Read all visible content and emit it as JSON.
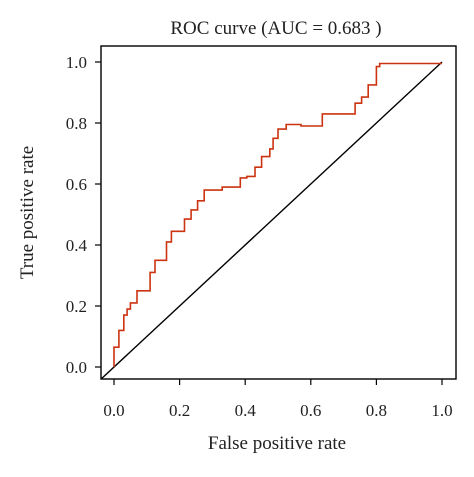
{
  "chart_data": {
    "type": "line",
    "title": "ROC curve (AUC = 0.683 )",
    "xlabel": "False positive rate",
    "ylabel": "True positive rate",
    "xlim": [
      0,
      1
    ],
    "ylim": [
      0,
      1
    ],
    "x_ticks": [
      "0.0",
      "0.2",
      "0.4",
      "0.6",
      "0.8",
      "1.0"
    ],
    "y_ticks": [
      "0.0",
      "0.2",
      "0.4",
      "0.6",
      "0.8",
      "1.0"
    ],
    "grid": false,
    "legend": "none",
    "colors": {
      "roc": "#cc3311",
      "diagonal": "#000000",
      "axis": "#000000"
    },
    "series": [
      {
        "x": [
          0.0,
          0.0,
          0.015,
          0.015,
          0.03,
          0.03,
          0.04,
          0.04,
          0.05,
          0.05,
          0.07,
          0.07,
          0.11,
          0.11,
          0.125,
          0.125,
          0.16,
          0.16,
          0.175,
          0.175,
          0.215,
          0.215,
          0.235,
          0.235,
          0.255,
          0.255,
          0.275,
          0.275,
          0.33,
          0.33,
          0.385,
          0.385,
          0.405,
          0.405,
          0.43,
          0.43,
          0.45,
          0.45,
          0.475,
          0.475,
          0.485,
          0.485,
          0.5,
          0.5,
          0.525,
          0.525,
          0.57,
          0.57,
          0.635,
          0.635,
          0.735,
          0.735,
          0.755,
          0.755,
          0.775,
          0.775,
          0.8,
          0.8,
          0.81,
          0.81,
          0.9,
          1.0
        ],
        "y": [
          0.0,
          0.065,
          0.065,
          0.12,
          0.12,
          0.17,
          0.17,
          0.19,
          0.19,
          0.21,
          0.21,
          0.25,
          0.25,
          0.31,
          0.31,
          0.35,
          0.35,
          0.41,
          0.41,
          0.445,
          0.445,
          0.485,
          0.485,
          0.515,
          0.515,
          0.545,
          0.545,
          0.58,
          0.58,
          0.59,
          0.59,
          0.62,
          0.62,
          0.625,
          0.625,
          0.655,
          0.655,
          0.69,
          0.69,
          0.715,
          0.715,
          0.75,
          0.75,
          0.78,
          0.78,
          0.795,
          0.795,
          0.79,
          0.79,
          0.83,
          0.83,
          0.865,
          0.865,
          0.885,
          0.885,
          0.925,
          0.925,
          0.985,
          0.985,
          0.995,
          0.995,
          0.995
        ]
      },
      {
        "x": [
          0,
          1
        ],
        "y": [
          0,
          1
        ]
      }
    ]
  }
}
